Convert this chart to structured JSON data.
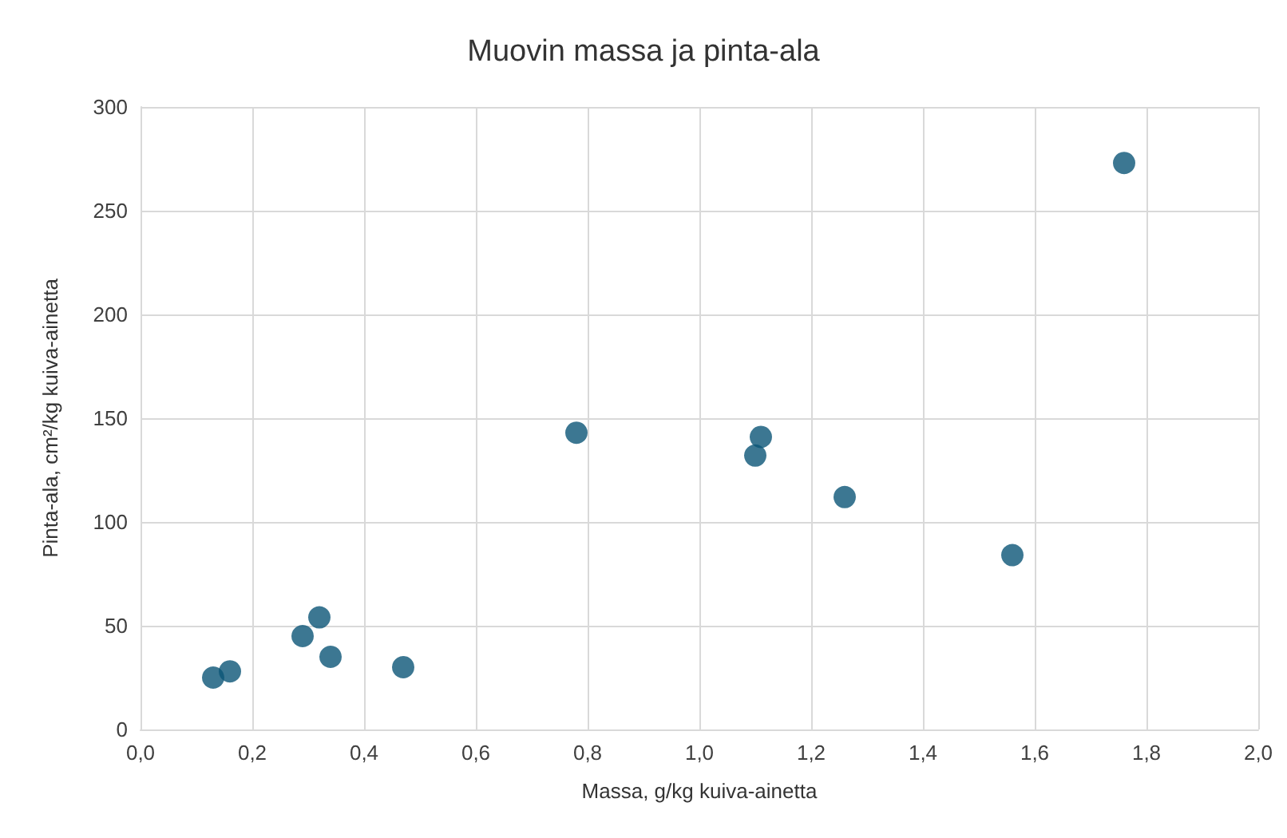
{
  "chart_data": {
    "type": "scatter",
    "title": "Muovin massa ja pinta-ala",
    "xlabel": "Massa, g/kg kuiva-ainetta",
    "ylabel": "Pinta-ala, cm²/kg kuiva-ainetta",
    "x": [
      0.13,
      0.16,
      0.29,
      0.32,
      0.34,
      0.47,
      0.78,
      1.1,
      1.11,
      1.26,
      1.56,
      1.76
    ],
    "values": [
      25,
      28,
      45,
      54,
      35,
      30,
      143,
      132,
      141,
      112,
      84,
      273
    ],
    "color": "#0b5577",
    "marker": "circle",
    "grid": true,
    "xlim": [
      0,
      2
    ],
    "xticks": [
      {
        "value": 0,
        "label": "0,0"
      },
      {
        "value": 0.2,
        "label": "0,2"
      },
      {
        "value": 0.4,
        "label": "0,4"
      },
      {
        "value": 0.6,
        "label": "0,6"
      },
      {
        "value": 0.8,
        "label": "0,8"
      },
      {
        "value": 1,
        "label": "1,0"
      },
      {
        "value": 1.2,
        "label": "1,2"
      },
      {
        "value": 1.4,
        "label": "1,4"
      },
      {
        "value": 1.6,
        "label": "1,6"
      },
      {
        "value": 1.8,
        "label": "1,8"
      },
      {
        "value": 2,
        "label": "2,0"
      }
    ],
    "ylim": [
      0,
      300
    ],
    "yticks": [
      0,
      50,
      100,
      150,
      200,
      250,
      300
    ]
  }
}
